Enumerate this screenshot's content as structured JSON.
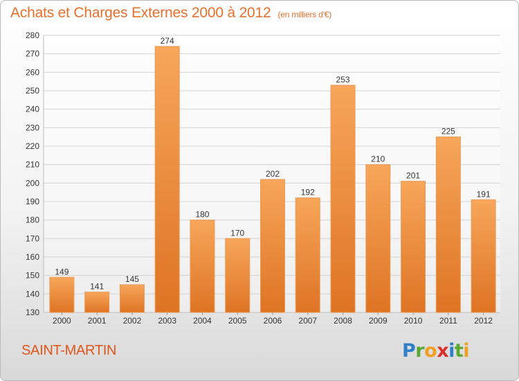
{
  "header": {
    "title": "Achats et Charges Externes 2000 à 2012",
    "subtitle": "(en milliers d'€)"
  },
  "footer": {
    "location": "SAINT-MARTIN",
    "logo_letters": [
      {
        "char": "P",
        "color": "#2f7fc8"
      },
      {
        "char": "r",
        "color": "#5aa832"
      },
      {
        "char": "o",
        "color": "#f0a020"
      },
      {
        "char": "x",
        "color": "#d8302a"
      },
      {
        "char": "i",
        "color": "#2f7fc8"
      },
      {
        "char": "t",
        "color": "#5aa832"
      },
      {
        "char": "i",
        "color": "#f0a020"
      }
    ]
  },
  "colors": {
    "bar_light": "#f7a65a",
    "bar_dark": "#de7424",
    "bar_edge": "#e99a55",
    "grid": "#d3d3d3",
    "axis_text": "#333333"
  },
  "chart_data": {
    "type": "bar",
    "categories": [
      "2000",
      "2001",
      "2002",
      "2003",
      "2004",
      "2005",
      "2006",
      "2007",
      "2008",
      "2009",
      "2010",
      "2011",
      "2012"
    ],
    "values": [
      149,
      141,
      145,
      274,
      180,
      170,
      202,
      192,
      253,
      210,
      201,
      225,
      191
    ],
    "ylim": [
      130,
      280
    ],
    "yticks": [
      130,
      140,
      150,
      160,
      170,
      180,
      190,
      200,
      210,
      220,
      230,
      240,
      250,
      260,
      270,
      280
    ],
    "grid": true,
    "data_labels": true
  }
}
